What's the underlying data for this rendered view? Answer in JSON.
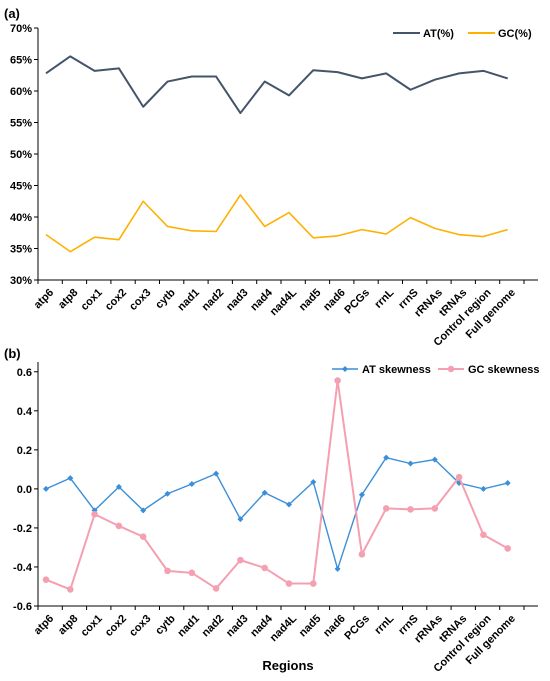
{
  "chart_data": [
    {
      "type": "line",
      "panel_label": "(a)",
      "title": "",
      "xlabel": "",
      "ylabel": "",
      "categories": [
        "atp6",
        "atp8",
        "cox1",
        "cox2",
        "cox3",
        "cytb",
        "nad1",
        "nad2",
        "nad3",
        "nad4",
        "nad4L",
        "nad5",
        "nad6",
        "PCGs",
        "rrnL",
        "rrnS",
        "rRNAs",
        "tRNAs",
        "Control region",
        "Full genome"
      ],
      "yticks": [
        "30%",
        "35%",
        "40%",
        "45%",
        "50%",
        "55%",
        "60%",
        "65%",
        "70%"
      ],
      "ylim": [
        30,
        70
      ],
      "grid": false,
      "legend_position": "top-right",
      "series": [
        {
          "name": "AT(%)",
          "color": "#44546a",
          "values": [
            62.8,
            65.5,
            63.2,
            63.6,
            57.5,
            61.5,
            62.3,
            62.3,
            56.5,
            61.5,
            59.3,
            63.3,
            63.0,
            62.0,
            62.8,
            60.2,
            61.8,
            62.8,
            63.2,
            62.0
          ]
        },
        {
          "name": "GC(%)",
          "color": "#ffb000",
          "values": [
            37.2,
            34.5,
            36.8,
            36.4,
            42.5,
            38.5,
            37.8,
            37.7,
            43.5,
            38.5,
            40.7,
            36.7,
            37.0,
            38.0,
            37.3,
            39.9,
            38.2,
            37.2,
            36.9,
            38.0
          ]
        }
      ]
    },
    {
      "type": "line",
      "panel_label": "(b)",
      "title": "",
      "xlabel": "Regions",
      "ylabel": "",
      "categories": [
        "atp6",
        "atp8",
        "cox1",
        "cox2",
        "cox3",
        "cytb",
        "nad1",
        "nad2",
        "nad3",
        "nad4",
        "nad4L",
        "nad5",
        "nad6",
        "PCGs",
        "rrnL",
        "rrnS",
        "rRNAs",
        "tRNAs",
        "Control region",
        "Full genome"
      ],
      "yticks": [
        "-0.6",
        "-0.4",
        "-0.2",
        "0.0",
        "0.2",
        "0.4",
        "0.6"
      ],
      "ylim": [
        -0.6,
        0.65
      ],
      "grid": false,
      "legend_position": "top-right",
      "series": [
        {
          "name": "AT skewness",
          "color": "#3a8fd8",
          "values": [
            0.0,
            0.055,
            -0.11,
            0.01,
            -0.11,
            -0.025,
            0.025,
            0.078,
            -0.155,
            -0.02,
            -0.08,
            0.035,
            -0.41,
            -0.03,
            0.16,
            0.13,
            0.15,
            0.03,
            0.0,
            0.03
          ]
        },
        {
          "name": "GC skewness",
          "color": "#f4a0b0",
          "values": [
            -0.465,
            -0.515,
            -0.13,
            -0.19,
            -0.245,
            -0.42,
            -0.43,
            -0.51,
            -0.365,
            -0.405,
            -0.485,
            -0.485,
            0.555,
            -0.335,
            -0.1,
            -0.105,
            -0.1,
            0.06,
            -0.235,
            -0.305
          ]
        }
      ]
    }
  ]
}
